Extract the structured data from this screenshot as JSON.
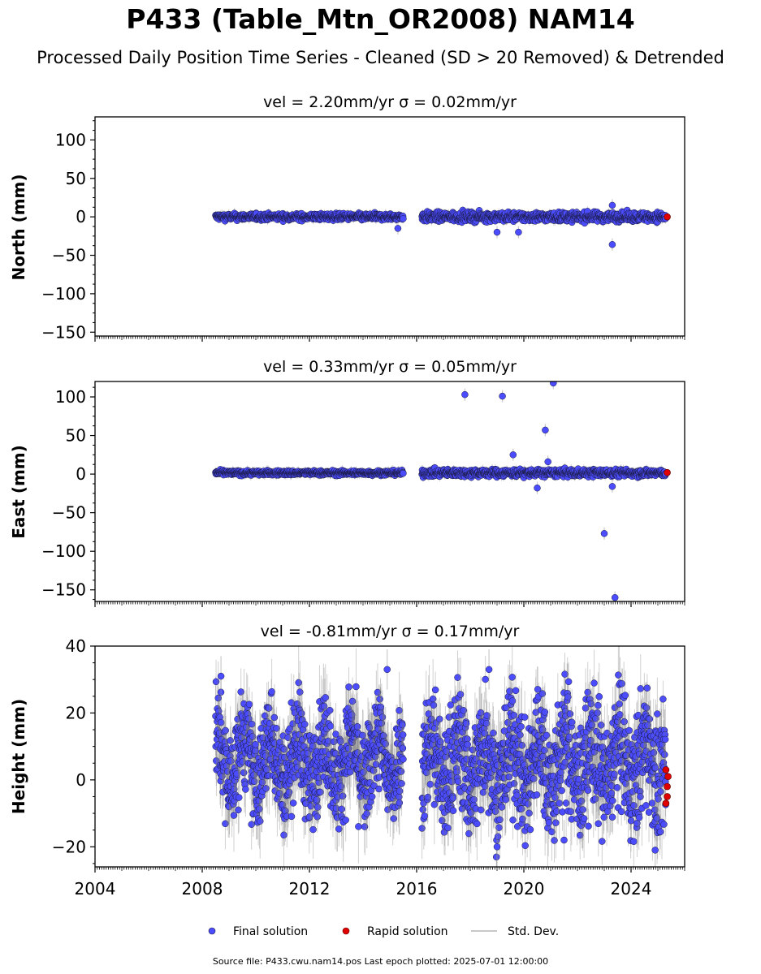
{
  "chart_data": {
    "title": "P433 (Table_Mtn_OR2008) NAM14",
    "subtitle": "Processed Daily Position Time Series - Cleaned (SD > 20 Removed) & Detrended",
    "type": "scatter",
    "x_range": [
      2004.0,
      2026.0
    ],
    "x_ticks": [
      2004,
      2008,
      2012,
      2016,
      2020,
      2024
    ],
    "grid": false,
    "legend": {
      "placement": "bottom-center",
      "entries": [
        "Final solution",
        "Rapid solution",
        "Std. Dev."
      ]
    },
    "colors": {
      "final": "#4c4cff",
      "final_edge": "#1a1a40",
      "rapid": "#e00000",
      "std_dev": "#b4b4b4"
    },
    "panels": [
      {
        "name": "north",
        "panel_title": "vel = 2.20mm/yr   σ = 0.02mm/yr",
        "ylabel": "North (mm)",
        "ylim": [
          -155,
          130
        ],
        "yticks": [
          100,
          50,
          0,
          -50,
          -100,
          -150
        ],
        "data_spans": [
          [
            2008.5,
            2015.5,
            0.0,
            3.5
          ],
          [
            2016.2,
            2025.3,
            0.0,
            5.0
          ]
        ],
        "outliers": [
          [
            2019.0,
            -20
          ],
          [
            2019.8,
            -20
          ],
          [
            2023.3,
            -36
          ],
          [
            2015.3,
            -15
          ],
          [
            2023.3,
            15
          ]
        ],
        "rapid_points": [
          [
            2025.35,
            0
          ]
        ]
      },
      {
        "name": "east",
        "panel_title": "vel = 0.33mm/yr   σ = 0.05mm/yr",
        "ylabel": "East (mm)",
        "ylim": [
          -165,
          120
        ],
        "yticks": [
          100,
          50,
          0,
          -50,
          -100,
          -150
        ],
        "data_spans": [
          [
            2008.5,
            2015.5,
            2.0,
            2.5
          ],
          [
            2016.2,
            2025.3,
            2.0,
            4.0
          ]
        ],
        "outliers": [
          [
            2017.8,
            103
          ],
          [
            2019.2,
            101
          ],
          [
            2021.1,
            118
          ],
          [
            2020.8,
            57
          ],
          [
            2019.6,
            25
          ],
          [
            2020.9,
            16
          ],
          [
            2023.0,
            -77
          ],
          [
            2023.4,
            -160
          ],
          [
            2023.3,
            -16
          ],
          [
            2020.5,
            -18
          ]
        ],
        "rapid_points": [
          [
            2025.35,
            2
          ]
        ]
      },
      {
        "name": "height",
        "panel_title": "vel = -0.81mm/yr   σ = 0.17mm/yr",
        "ylabel": "Height (mm)",
        "ylim": [
          -26,
          40
        ],
        "yticks": [
          40,
          20,
          0,
          -20
        ],
        "data_spans": [
          [
            2008.5,
            2015.5,
            6.0,
            8.0
          ],
          [
            2016.2,
            2025.3,
            5.0,
            10.0
          ]
        ],
        "outliers": [
          [
            2008.7,
            31
          ],
          [
            2014.9,
            33
          ],
          [
            2018.7,
            33
          ],
          [
            2019.0,
            -20
          ],
          [
            2024.9,
            -21
          ],
          [
            2021.5,
            -18
          ]
        ],
        "rapid_points": [
          [
            2025.3,
            3
          ],
          [
            2025.3,
            -7
          ],
          [
            2025.35,
            -2
          ],
          [
            2025.35,
            -5
          ],
          [
            2025.38,
            1
          ]
        ]
      }
    ],
    "source_text": "Source file: P433.cwu.nam14.pos  Last epoch plotted: 2025-07-01 12:00:00"
  }
}
